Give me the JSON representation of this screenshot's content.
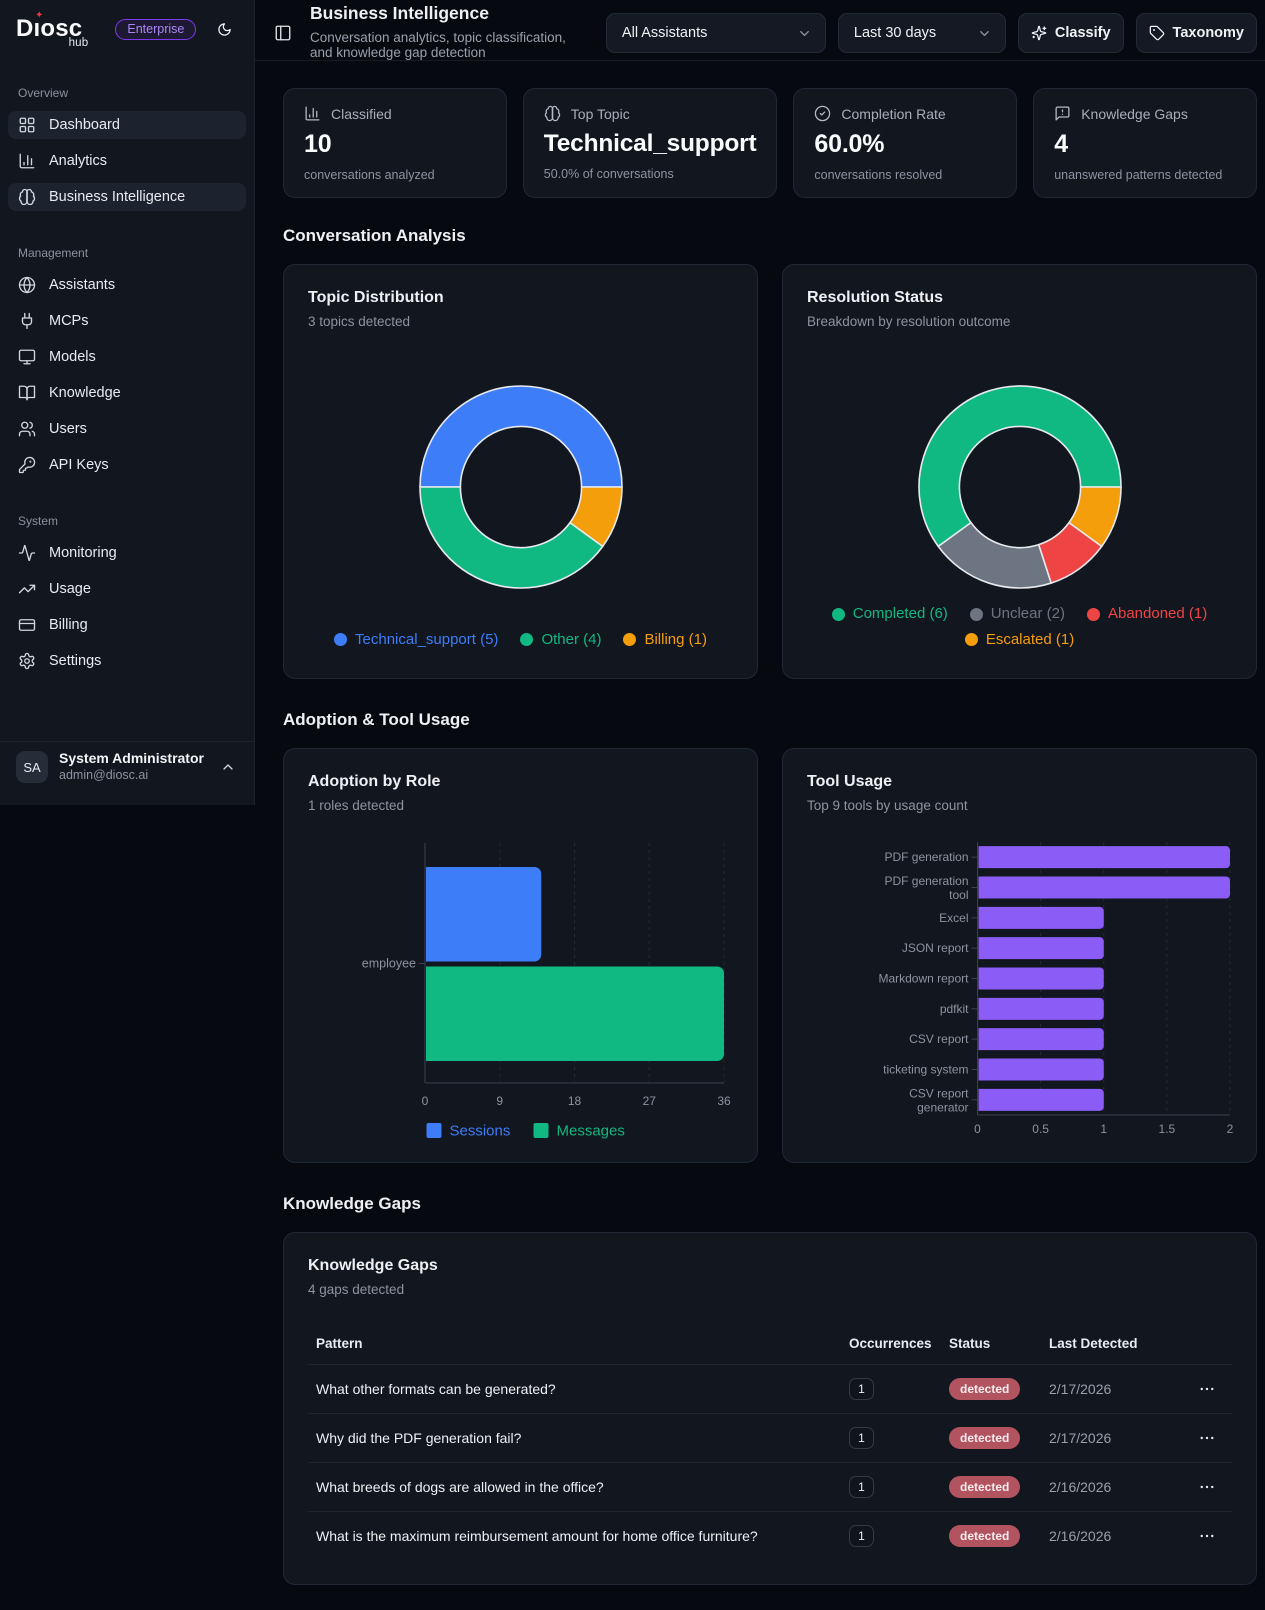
{
  "app": {
    "logo": "Diosc",
    "logo_sub": "hub",
    "plan_badge": "Enterprise"
  },
  "sidebar": {
    "sections": [
      {
        "label": "Overview",
        "items": [
          {
            "label": "Dashboard",
            "icon": "layout-dashboard",
            "active": true
          },
          {
            "label": "Analytics",
            "icon": "chart-column",
            "active": false
          },
          {
            "label": "Business Intelligence",
            "icon": "brain",
            "active": true
          }
        ]
      },
      {
        "label": "Management",
        "items": [
          {
            "label": "Assistants",
            "icon": "globe",
            "active": false
          },
          {
            "label": "MCPs",
            "icon": "plug",
            "active": false
          },
          {
            "label": "Models",
            "icon": "monitor",
            "active": false
          },
          {
            "label": "Knowledge",
            "icon": "book-open",
            "active": false
          },
          {
            "label": "Users",
            "icon": "users",
            "active": false
          },
          {
            "label": "API Keys",
            "icon": "key",
            "active": false
          }
        ]
      },
      {
        "label": "System",
        "items": [
          {
            "label": "Monitoring",
            "icon": "activity",
            "active": false
          },
          {
            "label": "Usage",
            "icon": "trending-up",
            "active": false
          },
          {
            "label": "Billing",
            "icon": "credit-card",
            "active": false
          },
          {
            "label": "Settings",
            "icon": "settings",
            "active": false
          }
        ]
      }
    ],
    "user": {
      "initials": "SA",
      "name": "System Administrator",
      "email": "admin@diosc.ai"
    }
  },
  "header": {
    "title": "Business Intelligence",
    "subtitle": "Conversation analytics, topic classification, and knowledge gap detection",
    "assistant_filter": "All Assistants",
    "date_filter": "Last 30 days",
    "classify_label": "Classify",
    "taxonomy_label": "Taxonomy"
  },
  "stats": [
    {
      "icon": "chart-column",
      "label": "Classified",
      "value": "10",
      "caption": "conversations analyzed"
    },
    {
      "icon": "brain",
      "label": "Top Topic",
      "value": "Technical_support",
      "caption": "50.0% of conversations"
    },
    {
      "icon": "circle-check",
      "label": "Completion Rate",
      "value": "60.0%",
      "caption": "conversations resolved"
    },
    {
      "icon": "message-square-warning",
      "label": "Knowledge Gaps",
      "value": "4",
      "caption": "unanswered patterns detected"
    }
  ],
  "section_titles": {
    "conversation_analysis": "Conversation Analysis",
    "adoption": "Adoption & Tool Usage",
    "knowledge_gaps": "Knowledge Gaps"
  },
  "chart_data": [
    {
      "type": "pie",
      "title": "Topic Distribution",
      "subtitle": "3 topics detected",
      "labels": [
        "Technical_support",
        "Other",
        "Billing"
      ],
      "values": [
        5,
        4,
        1
      ],
      "colors": [
        "#3d7ef8",
        "#10b981",
        "#f59e0b"
      ],
      "legend_position": "bottom",
      "cutout": 0.6
    },
    {
      "type": "pie",
      "title": "Resolution Status",
      "subtitle": "Breakdown by resolution outcome",
      "labels": [
        "Completed",
        "Unclear",
        "Abandoned",
        "Escalated"
      ],
      "values": [
        6,
        2,
        1,
        1
      ],
      "colors": [
        "#10b981",
        "#6e7582",
        "#ef4444",
        "#f59e0b"
      ],
      "legend_position": "bottom",
      "cutout": 0.6
    },
    {
      "type": "bar",
      "title": "Adoption by Role",
      "subtitle": "1 roles detected",
      "orientation": "horizontal",
      "categories": [
        "employee"
      ],
      "series": [
        {
          "name": "Sessions",
          "values": [
            14
          ],
          "color": "#3d7ef8"
        },
        {
          "name": "Messages",
          "values": [
            36
          ],
          "color": "#10b981"
        }
      ],
      "xlim": [
        0,
        36
      ],
      "xticks": [
        0,
        9,
        18,
        27,
        36
      ],
      "grid": "dashed-vertical",
      "legend_position": "bottom"
    },
    {
      "type": "bar",
      "title": "Tool Usage",
      "subtitle": "Top 9 tools by usage count",
      "orientation": "horizontal",
      "categories": [
        "PDF generation",
        "PDF generation tool",
        "Excel",
        "JSON report",
        "Markdown report",
        "pdfkit",
        "CSV report",
        "ticketing system",
        "CSV report generator"
      ],
      "values": [
        2,
        2,
        1,
        1,
        1,
        1,
        1,
        1,
        1
      ],
      "color": "#8b5cf6",
      "xlim": [
        0,
        2
      ],
      "xticks": [
        0,
        0.5,
        1,
        1.5,
        2
      ],
      "grid": "dashed-vertical",
      "legend_position": "none"
    }
  ],
  "gaps_table": {
    "title": "Knowledge Gaps",
    "subtitle": "4 gaps detected",
    "columns": [
      "Pattern",
      "Occurrences",
      "Status",
      "Last Detected"
    ],
    "rows": [
      {
        "pattern": "What other formats can be generated?",
        "occurrences": "1",
        "status": "detected",
        "last_detected": "2/17/2026"
      },
      {
        "pattern": "Why did the PDF generation fail?",
        "occurrences": "1",
        "status": "detected",
        "last_detected": "2/17/2026"
      },
      {
        "pattern": "What breeds of dogs are allowed in the office?",
        "occurrences": "1",
        "status": "detected",
        "last_detected": "2/16/2026"
      },
      {
        "pattern": "What is the maximum reimbursement amount for home office furniture?",
        "occurrences": "1",
        "status": "detected",
        "last_detected": "2/16/2026"
      }
    ]
  }
}
